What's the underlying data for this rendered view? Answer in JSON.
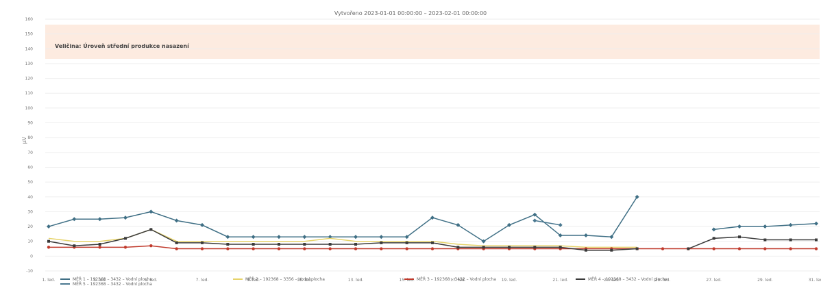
{
  "chart_data": {
    "type": "line",
    "title": "Vytvořeno 2023-01-01 00:00:00 – 2023-02-01 00:00:00",
    "banner": "Veličina: Úroveň střední produkce nasazení",
    "ylabel": "μV",
    "xlabel": "",
    "ylim": [
      -10,
      160
    ],
    "yticks": [
      -10,
      0,
      10,
      20,
      30,
      40,
      50,
      60,
      70,
      80,
      90,
      100,
      110,
      120,
      130,
      140,
      150,
      160
    ],
    "ytick_labels": [
      "-10",
      "0",
      "10",
      "20",
      "30",
      "40",
      "50",
      "60",
      "70",
      "80",
      "90",
      "100",
      "110",
      "120",
      "130",
      "140",
      "150",
      "160"
    ],
    "x": [
      1,
      2,
      3,
      4,
      5,
      6,
      7,
      8,
      9,
      10,
      11,
      12,
      13,
      14,
      15,
      16,
      17,
      18,
      19,
      20,
      21,
      22,
      23,
      24,
      25,
      26,
      27,
      28,
      29,
      30,
      31
    ],
    "xtick_values": [
      1,
      3,
      5,
      7,
      9,
      11,
      13,
      15,
      17,
      19,
      21,
      23,
      25,
      27,
      29,
      31
    ],
    "xtick_labels": [
      "1. led.",
      "3. led.",
      "5. led.",
      "7. led.",
      "9. led.",
      "11. led.",
      "13. led.",
      "15. led.",
      "17. led.",
      "19. led.",
      "21. led.",
      "23. led.",
      "25. led.",
      "27. led.",
      "29. led.",
      "31. led."
    ],
    "grid": true,
    "legend_position": "bottom",
    "series": [
      {
        "name": "MĚŘ 1 – 192368 – 3432 – Vodní plocha",
        "color": "#3f6f85",
        "marker": "diamond",
        "values": [
          20,
          25,
          25,
          26,
          30,
          24,
          21,
          13,
          13,
          13,
          13,
          13,
          13,
          13,
          13,
          26,
          21,
          10,
          21,
          28,
          14,
          14,
          13,
          40,
          null,
          null,
          18,
          20,
          20,
          21,
          22
        ]
      },
      {
        "name": "MĚŘ 2 – 192368 – 3356 – Vodní plocha",
        "color": "#e6d36a",
        "marker": "none",
        "values": [
          12,
          10,
          10,
          12,
          18,
          10,
          10,
          10,
          10,
          10,
          10,
          12,
          10,
          10,
          10,
          10,
          8,
          7,
          7,
          7,
          7,
          6,
          6,
          6,
          null,
          null,
          null,
          null,
          null,
          null,
          null
        ]
      },
      {
        "name": "MĚŘ 3 – 192368 – 3432 – Vodní plocha",
        "color": "#c0392b",
        "marker": "circle",
        "values": [
          6,
          6,
          6,
          6,
          7,
          5,
          5,
          5,
          5,
          5,
          5,
          5,
          5,
          5,
          5,
          5,
          5,
          5,
          5,
          5,
          5,
          5,
          5,
          5,
          5,
          5,
          5,
          5,
          5,
          5,
          5
        ]
      },
      {
        "name": "MĚŘ 4 – 192368 – 3432 – Vodní plocha",
        "color": "#3a3a3a",
        "marker": "square",
        "values": [
          10,
          7,
          8,
          12,
          18,
          9,
          9,
          8,
          8,
          8,
          8,
          8,
          8,
          9,
          9,
          9,
          6,
          6,
          6,
          6,
          6,
          4,
          4,
          5,
          null,
          5,
          12,
          13,
          11,
          11,
          11
        ]
      },
      {
        "name": "MĚŘ 5 – 192368 – 3432 – Vodní plocha",
        "color": "#4a7890",
        "marker": "diamond",
        "values": [
          null,
          null,
          null,
          null,
          null,
          null,
          null,
          null,
          null,
          null,
          null,
          null,
          null,
          null,
          null,
          null,
          null,
          null,
          null,
          24,
          21,
          null,
          null,
          null,
          null,
          null,
          null,
          null,
          null,
          null,
          null
        ]
      }
    ]
  }
}
